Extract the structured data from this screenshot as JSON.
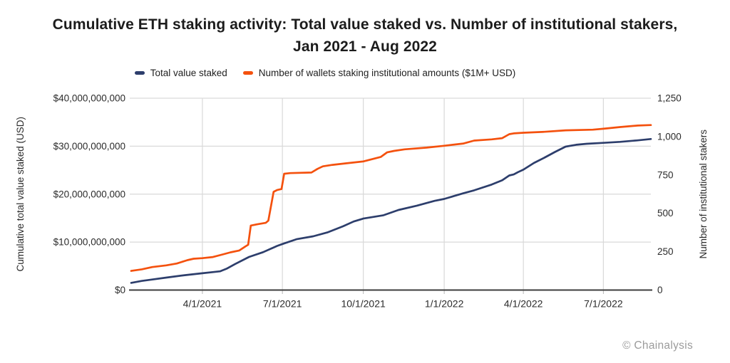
{
  "title": {
    "line1": "Cumulative ETH staking activity: Total value staked vs. Number of institutional stakers,",
    "line2": "Jan 2021 - Aug 2022"
  },
  "watermark": "© Chainalysis",
  "colors": {
    "navy": "#2d3e6c",
    "orange": "#f4510e",
    "gridline": "#d9d9d9",
    "axis_line": "#3d3d3d",
    "tick_mark": "#b5b5b5",
    "tick_text": "#2b2b2b",
    "axis_title_text": "#2b2b2b",
    "watermark_text": "#9b9b9b"
  },
  "chart_data": {
    "type": "line",
    "title": "Cumulative ETH staking activity: Total value staked vs. Number of institutional stakers, Jan 2021 - Aug 2022",
    "grid": "horizontal and vertical light gray gridlines",
    "legend_position": "top center",
    "x_range": [
      "2021-01-10",
      "2022-08-24"
    ],
    "x_axis": {
      "ticks": [
        {
          "date": "2021-04-01",
          "label": "4/1/2021"
        },
        {
          "date": "2021-07-01",
          "label": "7/1/2021"
        },
        {
          "date": "2021-10-01",
          "label": "10/1/2021"
        },
        {
          "date": "2022-01-01",
          "label": "1/1/2022"
        },
        {
          "date": "2022-04-01",
          "label": "4/1/2022"
        },
        {
          "date": "2022-07-01",
          "label": "7/1/2022"
        }
      ]
    },
    "left_axis": {
      "title": "Cumulative total value staked (USD)",
      "unit": "USD billions",
      "min": 0,
      "max": 40,
      "ticks": [
        {
          "v": 0,
          "label": "$0"
        },
        {
          "v": 10,
          "label": "$10,000,000,000"
        },
        {
          "v": 20,
          "label": "$20,000,000,000"
        },
        {
          "v": 30,
          "label": "$30,000,000,000"
        },
        {
          "v": 40,
          "label": "$40,000,000,000"
        }
      ]
    },
    "right_axis": {
      "title": "Number of institutional stakers",
      "unit": "wallets",
      "min": 0,
      "max": 1250,
      "ticks": [
        {
          "v": 0,
          "label": "0"
        },
        {
          "v": 250,
          "label": "250"
        },
        {
          "v": 500,
          "label": "500"
        },
        {
          "v": 750,
          "label": "750"
        },
        {
          "v": 1000,
          "label": "1,000"
        },
        {
          "v": 1250,
          "label": "1,250"
        }
      ]
    },
    "series": [
      {
        "name": "Total value staked",
        "axis": "left",
        "unit": "USD billions",
        "color": "#2d3e6c",
        "points": [
          [
            "2021-01-10",
            1.5
          ],
          [
            "2021-01-22",
            1.9
          ],
          [
            "2021-02-03",
            2.2
          ],
          [
            "2021-02-19",
            2.6
          ],
          [
            "2021-03-12",
            3.1
          ],
          [
            "2021-04-01",
            3.5
          ],
          [
            "2021-04-21",
            3.9
          ],
          [
            "2021-04-29",
            4.5
          ],
          [
            "2021-05-08",
            5.4
          ],
          [
            "2021-05-24",
            6.9
          ],
          [
            "2021-06-09",
            7.9
          ],
          [
            "2021-06-25",
            9.2
          ],
          [
            "2021-07-01",
            9.6
          ],
          [
            "2021-07-17",
            10.6
          ],
          [
            "2021-08-05",
            11.2
          ],
          [
            "2021-08-21",
            12.0
          ],
          [
            "2021-09-08",
            13.3
          ],
          [
            "2021-09-20",
            14.3
          ],
          [
            "2021-10-01",
            14.9
          ],
          [
            "2021-10-14",
            15.3
          ],
          [
            "2021-10-24",
            15.6
          ],
          [
            "2021-11-10",
            16.7
          ],
          [
            "2021-12-01",
            17.6
          ],
          [
            "2021-12-21",
            18.6
          ],
          [
            "2022-01-01",
            19.0
          ],
          [
            "2022-01-23",
            20.2
          ],
          [
            "2022-02-04",
            20.8
          ],
          [
            "2022-02-24",
            22.0
          ],
          [
            "2022-03-08",
            22.9
          ],
          [
            "2022-03-16",
            23.9
          ],
          [
            "2022-03-21",
            24.1
          ],
          [
            "2022-03-26",
            24.6
          ],
          [
            "2022-04-01",
            25.1
          ],
          [
            "2022-04-13",
            26.5
          ],
          [
            "2022-04-25",
            27.6
          ],
          [
            "2022-05-07",
            28.8
          ],
          [
            "2022-05-19",
            29.9
          ],
          [
            "2022-05-31",
            30.3
          ],
          [
            "2022-06-12",
            30.5
          ],
          [
            "2022-07-01",
            30.7
          ],
          [
            "2022-07-20",
            30.9
          ],
          [
            "2022-08-08",
            31.2
          ],
          [
            "2022-08-24",
            31.5
          ]
        ]
      },
      {
        "name": "Number of wallets staking institutional amounts ($1M+ USD)",
        "axis": "right",
        "unit": "wallets",
        "color": "#f4510e",
        "points": [
          [
            "2021-01-10",
            125
          ],
          [
            "2021-01-22",
            135
          ],
          [
            "2021-02-03",
            150
          ],
          [
            "2021-02-19",
            161
          ],
          [
            "2021-03-03",
            173
          ],
          [
            "2021-03-15",
            195
          ],
          [
            "2021-03-22",
            204
          ],
          [
            "2021-04-01",
            208
          ],
          [
            "2021-04-13",
            215
          ],
          [
            "2021-04-24",
            232
          ],
          [
            "2021-05-03",
            246
          ],
          [
            "2021-05-13",
            258
          ],
          [
            "2021-05-20",
            285
          ],
          [
            "2021-05-23",
            295
          ],
          [
            "2021-05-26",
            420
          ],
          [
            "2021-06-02",
            428
          ],
          [
            "2021-06-12",
            438
          ],
          [
            "2021-06-15",
            452
          ],
          [
            "2021-06-21",
            640
          ],
          [
            "2021-06-25",
            652
          ],
          [
            "2021-06-30",
            658
          ],
          [
            "2021-07-03",
            758
          ],
          [
            "2021-07-10",
            762
          ],
          [
            "2021-08-03",
            766
          ],
          [
            "2021-08-10",
            790
          ],
          [
            "2021-08-16",
            806
          ],
          [
            "2021-08-27",
            816
          ],
          [
            "2021-09-12",
            826
          ],
          [
            "2021-10-01",
            838
          ],
          [
            "2021-10-21",
            868
          ],
          [
            "2021-10-28",
            897
          ],
          [
            "2021-11-05",
            907
          ],
          [
            "2021-11-17",
            917
          ],
          [
            "2021-12-12",
            928
          ],
          [
            "2022-01-01",
            940
          ],
          [
            "2022-01-23",
            955
          ],
          [
            "2022-02-04",
            974
          ],
          [
            "2022-02-24",
            982
          ],
          [
            "2022-03-08",
            990
          ],
          [
            "2022-03-16",
            1016
          ],
          [
            "2022-03-21",
            1021
          ],
          [
            "2022-04-01",
            1025
          ],
          [
            "2022-04-25",
            1031
          ],
          [
            "2022-05-19",
            1041
          ],
          [
            "2022-06-19",
            1045
          ],
          [
            "2022-07-01",
            1051
          ],
          [
            "2022-07-20",
            1062
          ],
          [
            "2022-08-09",
            1072
          ],
          [
            "2022-08-24",
            1075
          ]
        ]
      }
    ]
  }
}
